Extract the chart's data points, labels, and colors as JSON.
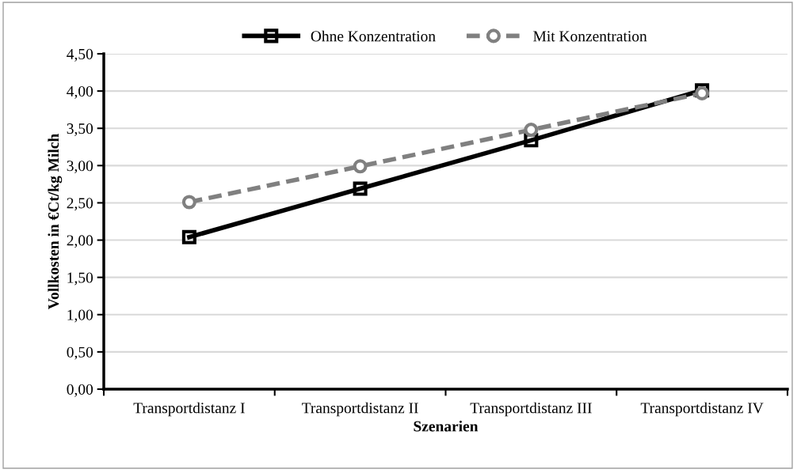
{
  "chart_data": {
    "type": "line",
    "xlabel": "Szenarien",
    "ylabel": "Vollkosten in €Ct/kg Milch",
    "categories": [
      "Transportdistanz I",
      "Transportdistanz II",
      "Transportdistanz III",
      "Transportdistanz IV"
    ],
    "series": [
      {
        "name": "Ohne Konzentration",
        "color": "#000000",
        "values": [
          2.04,
          2.69,
          3.34,
          4.01
        ],
        "marker": "square",
        "line_style": "solid"
      },
      {
        "name": "Mit Konzentration",
        "color": "#808080",
        "values": [
          2.51,
          2.99,
          3.48,
          3.97
        ],
        "marker": "circle",
        "line_style": "dashed"
      }
    ],
    "ylim": [
      0,
      4.5
    ],
    "yticks": [
      {
        "value": 0,
        "label": "0,00"
      },
      {
        "value": 0.5,
        "label": "0,50"
      },
      {
        "value": 1,
        "label": "1,00"
      },
      {
        "value": 1.5,
        "label": "1,50"
      },
      {
        "value": 2,
        "label": "2,00"
      },
      {
        "value": 2.5,
        "label": "2,50"
      },
      {
        "value": 3,
        "label": "3,00"
      },
      {
        "value": 3.5,
        "label": "3,50"
      },
      {
        "value": 4,
        "label": "4,00"
      },
      {
        "value": 4.5,
        "label": "4,50"
      }
    ],
    "grid": "y",
    "legend": "top"
  }
}
